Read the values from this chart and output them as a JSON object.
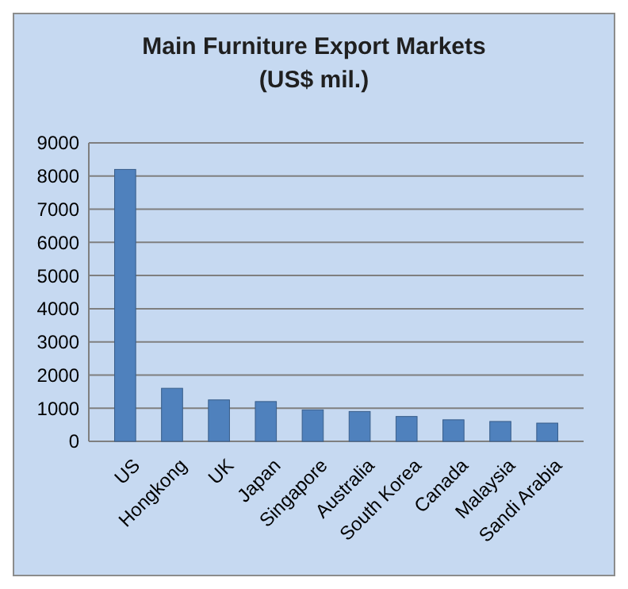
{
  "chart_data": {
    "type": "bar",
    "title": "Main Furniture Export Markets",
    "subtitle": "(US$ mil.)",
    "categories": [
      "US",
      "Hongkong",
      "UK",
      "Japan",
      "Singapore",
      "Australia",
      "South Korea",
      "Canada",
      "Malaysia",
      "Sandi Arabia"
    ],
    "values": [
      8200,
      1600,
      1250,
      1200,
      950,
      900,
      750,
      650,
      600,
      550
    ],
    "color": "#4f81bd",
    "ylim": [
      0,
      9000
    ],
    "yticks": [
      0,
      1000,
      2000,
      3000,
      4000,
      5000,
      6000,
      7000,
      8000,
      9000
    ],
    "grid": "y"
  }
}
